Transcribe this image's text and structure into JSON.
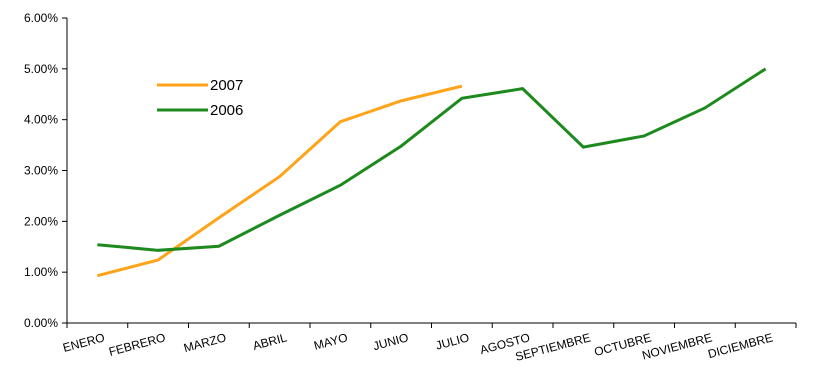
{
  "chart_data": {
    "type": "line",
    "categories": [
      "ENERO",
      "FEBRERO",
      "MARZO",
      "ABRIL",
      "MAYO",
      "JUNIO",
      "JULIO",
      "AGOSTO",
      "SEPTIEMBRE",
      "OCTUBRE",
      "NOVIEMBRE",
      "DICIEMBRE"
    ],
    "series": [
      {
        "name": "2007",
        "color": "#FFA31A",
        "values": [
          0.93,
          1.24,
          2.07,
          2.88,
          3.96,
          4.37,
          4.66,
          null,
          null,
          null,
          null,
          null
        ]
      },
      {
        "name": "2006",
        "color": "#1E8A1E",
        "values": [
          1.54,
          1.43,
          1.51,
          2.12,
          2.71,
          3.48,
          4.42,
          4.61,
          3.46,
          3.68,
          4.23,
          5.0
        ]
      }
    ],
    "yticks": [
      "0.00%",
      "1.00%",
      "2.00%",
      "3.00%",
      "4.00%",
      "5.00%",
      "6.00%"
    ],
    "ylim": [
      0,
      6
    ],
    "grid": false,
    "legend": "upper-left inside plot",
    "title": "",
    "xlabel": "",
    "ylabel": ""
  }
}
